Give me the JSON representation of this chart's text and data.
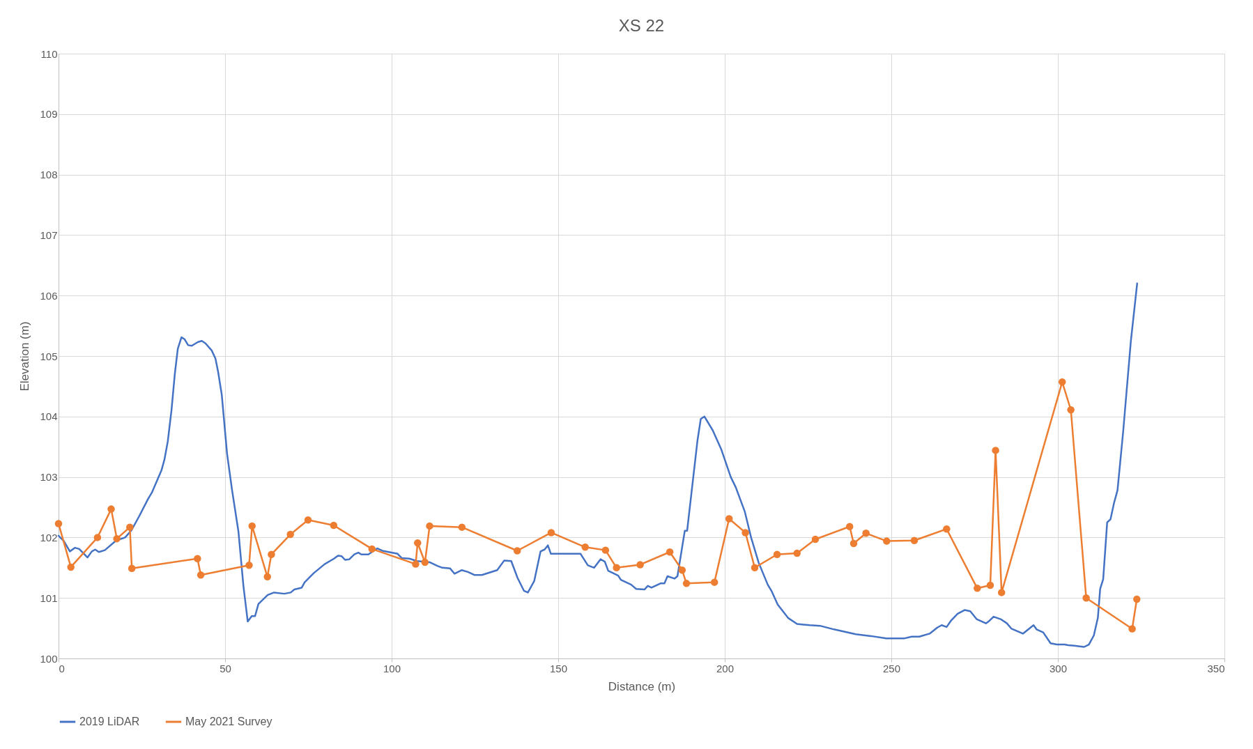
{
  "chart_data": {
    "type": "line",
    "title": "XS 22",
    "xlabel": "Distance (m)",
    "ylabel": "Elevation (m)",
    "xlim": [
      0,
      350
    ],
    "xticks": [
      0,
      50,
      100,
      150,
      200,
      250,
      300,
      350
    ],
    "ylim": [
      100,
      110
    ],
    "yticks": [
      100,
      101,
      102,
      103,
      104,
      105,
      106,
      107,
      108,
      109,
      110
    ],
    "grid": true,
    "legend": "bottom",
    "series": [
      {
        "name": "2019 LiDAR",
        "color": "#4472c4",
        "marker": "none",
        "x": [
          0,
          1.6,
          3.4,
          4.9,
          6.2,
          8.7,
          10,
          11,
          12.1,
          13.9,
          17.3,
          20,
          21.9,
          24.2,
          26.9,
          28,
          30.9,
          31.8,
          32.8,
          33.9,
          34.9,
          35.8,
          36.9,
          37.8,
          38.9,
          40,
          41.8,
          43,
          44.1,
          46,
          47.1,
          47.9,
          49,
          50.6,
          52.1,
          54,
          55.5,
          56.8,
          58,
          59,
          60,
          62.8,
          64.7,
          67.8,
          69.7,
          70.8,
          73,
          73.9,
          76.6,
          79.9,
          82.7,
          83.9,
          85,
          86,
          87.3,
          88.8,
          90,
          90.9,
          93,
          95.7,
          97.2,
          99.9,
          101.8,
          103,
          105.3,
          107.6,
          111.4,
          113.7,
          115.2,
          117.5,
          118.9,
          121,
          122.9,
          124.8,
          127.1,
          131.7,
          133.8,
          135.9,
          137.8,
          139.7,
          140.9,
          142.8,
          144.7,
          145.9,
          146.9,
          147.8,
          150,
          153,
          156.7,
          158.9,
          160.8,
          162.7,
          164,
          165,
          168,
          168.8,
          171.9,
          173.4,
          175.9,
          176.9,
          178,
          180.7,
          181.9,
          182.8,
          184.9,
          185.8,
          188,
          188.7,
          191.8,
          192.8,
          193.9,
          196.4,
          199,
          201.8,
          203.3,
          206,
          207.9,
          210.2,
          212.9,
          214,
          215.9,
          219,
          221.7,
          223.6,
          225.5,
          228.6,
          232.8,
          239.3,
          243.9,
          248.5,
          253.8,
          256.1,
          258.4,
          261.5,
          263.8,
          265.1,
          266.6,
          268,
          269.9,
          272,
          273.7,
          275.6,
          278.4,
          279.4,
          280.7,
          282.8,
          284.7,
          286.1,
          289.5,
          292.7,
          293.6,
          295.6,
          297.8,
          299.7,
          302,
          303.1,
          305,
          306.6,
          307.9,
          309.3,
          310.8,
          312,
          312.7,
          313.6,
          314.8,
          315.8,
          316.9,
          317.9,
          319.6,
          321.9,
          323.8
        ],
        "values": [
          102.03,
          101.94,
          101.77,
          101.83,
          101.81,
          101.67,
          101.77,
          101.8,
          101.76,
          101.79,
          101.95,
          102.0,
          102.12,
          102.35,
          102.64,
          102.74,
          103.11,
          103.29,
          103.59,
          104.1,
          104.7,
          105.12,
          105.31,
          105.28,
          105.18,
          105.17,
          105.23,
          105.25,
          105.21,
          105.09,
          104.96,
          104.74,
          104.36,
          103.38,
          102.78,
          102.1,
          101.2,
          100.61,
          100.7,
          100.7,
          100.9,
          101.05,
          101.09,
          101.07,
          101.09,
          101.14,
          101.17,
          101.26,
          101.41,
          101.56,
          101.65,
          101.7,
          101.69,
          101.63,
          101.64,
          101.72,
          101.75,
          101.72,
          101.72,
          101.82,
          101.78,
          101.75,
          101.73,
          101.66,
          101.65,
          101.61,
          101.59,
          101.53,
          101.5,
          101.49,
          101.4,
          101.46,
          101.43,
          101.38,
          101.38,
          101.46,
          101.62,
          101.61,
          101.33,
          101.12,
          101.09,
          101.28,
          101.77,
          101.8,
          101.87,
          101.73,
          101.73,
          101.73,
          101.73,
          101.54,
          101.5,
          101.64,
          101.6,
          101.45,
          101.37,
          101.3,
          101.22,
          101.15,
          101.14,
          101.2,
          101.17,
          101.24,
          101.24,
          101.36,
          101.32,
          101.36,
          102.11,
          102.11,
          103.6,
          103.96,
          104.0,
          103.77,
          103.45,
          103.0,
          102.83,
          102.43,
          102.0,
          101.58,
          101.22,
          101.12,
          100.89,
          100.67,
          100.57,
          100.56,
          100.55,
          100.54,
          100.48,
          100.4,
          100.37,
          100.33,
          100.33,
          100.36,
          100.36,
          100.41,
          100.51,
          100.55,
          100.52,
          100.63,
          100.74,
          100.8,
          100.78,
          100.65,
          100.58,
          100.62,
          100.69,
          100.65,
          100.58,
          100.49,
          100.41,
          100.55,
          100.48,
          100.43,
          100.25,
          100.23,
          100.23,
          100.22,
          100.21,
          100.2,
          100.19,
          100.23,
          100.38,
          100.67,
          101.15,
          101.31,
          102.25,
          102.3,
          102.58,
          102.78,
          103.75,
          105.24,
          106.2
        ]
      },
      {
        "name": "May 2021 Survey",
        "color": "#ed7d31",
        "marker": "circle",
        "x": [
          0,
          3.7,
          11.7,
          15.8,
          17.5,
          21.4,
          22,
          41.7,
          42.7,
          57.2,
          58.1,
          62.7,
          63.9,
          69.6,
          74.9,
          82.6,
          94.1,
          107.2,
          107.8,
          110,
          111.4,
          121.1,
          137.7,
          147.9,
          158.1,
          164.2,
          167.5,
          174.6,
          183.5,
          187.2,
          188.5,
          196.9,
          201.3,
          206.2,
          209,
          215.7,
          221.7,
          227.2,
          237.5,
          238.7,
          242.4,
          248.6,
          256.9,
          266.6,
          275.8,
          279.7,
          281.3,
          283.1,
          301.3,
          303.9,
          308.5,
          322.3,
          323.7
        ],
        "values": [
          102.23,
          101.51,
          102.0,
          102.47,
          101.98,
          102.17,
          101.49,
          101.65,
          101.38,
          101.54,
          102.19,
          101.35,
          101.72,
          102.05,
          102.29,
          102.2,
          101.81,
          101.56,
          101.91,
          101.59,
          102.19,
          102.17,
          101.78,
          102.08,
          101.84,
          101.79,
          101.5,
          101.55,
          101.76,
          101.46,
          101.24,
          101.26,
          102.31,
          102.08,
          101.5,
          101.72,
          101.74,
          101.97,
          102.18,
          101.9,
          102.07,
          101.94,
          101.95,
          102.14,
          101.16,
          101.21,
          103.44,
          101.09,
          104.57,
          104.11,
          101.0,
          100.49,
          100.98
        ]
      }
    ]
  }
}
